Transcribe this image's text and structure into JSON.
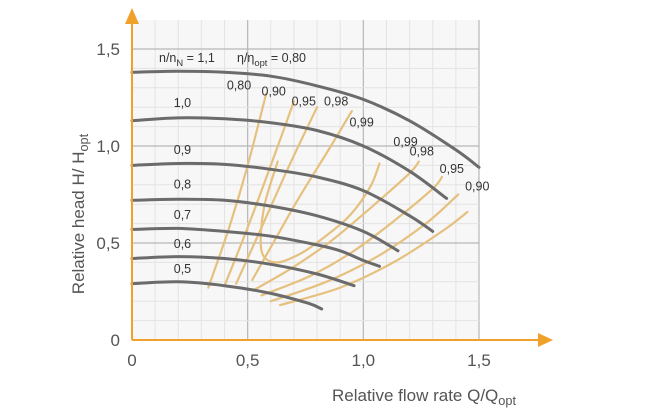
{
  "chart_data": {
    "type": "line",
    "xlabel": "Relative flow rate Q/Q",
    "xlabel_sub": "opt",
    "ylabel": "Relative head H/ H",
    "ylabel_sub": "opt",
    "xlim": [
      0,
      1.55
    ],
    "ylim": [
      0,
      1.55
    ],
    "x_ticks": [
      {
        "value": 0,
        "label": "0"
      },
      {
        "value": 0.5,
        "label": "0,5"
      },
      {
        "value": 1.0,
        "label": "1,0"
      },
      {
        "value": 1.5,
        "label": "1,5"
      }
    ],
    "y_ticks": [
      {
        "value": 0,
        "label": "0"
      },
      {
        "value": 0.5,
        "label": "0,5"
      },
      {
        "value": 1.0,
        "label": "1,0"
      },
      {
        "value": 1.5,
        "label": "1,5"
      }
    ],
    "grid": true,
    "speed_header": {
      "text": "n/n",
      "sub": "N",
      "suffix": " = 1,1"
    },
    "efficiency_header": {
      "text": "η/η",
      "sub": "opt",
      "suffix": " = 0,80"
    },
    "head_curves": [
      {
        "name": "1,1",
        "x": [
          0,
          0.2,
          0.4,
          0.6,
          0.8,
          1.0,
          1.2,
          1.4,
          1.5
        ],
        "y": [
          1.38,
          1.385,
          1.38,
          1.36,
          1.31,
          1.24,
          1.13,
          0.98,
          0.89
        ]
      },
      {
        "name": "1,0",
        "x": [
          0,
          0.2,
          0.4,
          0.6,
          0.8,
          1.0,
          1.2,
          1.36
        ],
        "y": [
          1.13,
          1.145,
          1.14,
          1.12,
          1.08,
          1.0,
          0.87,
          0.73
        ]
      },
      {
        "name": "0,9",
        "x": [
          0,
          0.2,
          0.4,
          0.6,
          0.8,
          1.0,
          1.2,
          1.3
        ],
        "y": [
          0.9,
          0.91,
          0.905,
          0.88,
          0.84,
          0.77,
          0.64,
          0.56
        ]
      },
      {
        "name": "0,8",
        "x": [
          0,
          0.2,
          0.4,
          0.6,
          0.8,
          1.0,
          1.15
        ],
        "y": [
          0.72,
          0.725,
          0.72,
          0.69,
          0.64,
          0.56,
          0.46
        ]
      },
      {
        "name": "0,7",
        "x": [
          0,
          0.2,
          0.4,
          0.6,
          0.8,
          0.9,
          1.0,
          1.07
        ],
        "y": [
          0.57,
          0.575,
          0.56,
          0.535,
          0.49,
          0.46,
          0.41,
          0.38
        ]
      },
      {
        "name": "0,6",
        "x": [
          0,
          0.2,
          0.4,
          0.6,
          0.8,
          0.96
        ],
        "y": [
          0.42,
          0.43,
          0.42,
          0.39,
          0.34,
          0.28
        ]
      },
      {
        "name": "0,5",
        "x": [
          0,
          0.2,
          0.4,
          0.6,
          0.76,
          0.82
        ],
        "y": [
          0.29,
          0.3,
          0.28,
          0.24,
          0.19,
          0.16
        ]
      }
    ],
    "head_curve_labels": [
      {
        "name": "1,0",
        "text": "1,0",
        "x": 0.12,
        "y": 1.2
      },
      {
        "name": "0,9",
        "text": "0,9",
        "x": 0.12,
        "y": 0.96
      },
      {
        "name": "0,8",
        "text": "0,8",
        "x": 0.12,
        "y": 0.78
      },
      {
        "name": "0,7",
        "text": "0,7",
        "x": 0.12,
        "y": 0.625
      },
      {
        "name": "0,6",
        "text": "0,6",
        "x": 0.12,
        "y": 0.475
      },
      {
        "name": "0,5",
        "text": "0,5",
        "x": 0.12,
        "y": 0.345
      }
    ],
    "efficiency_curves": [
      {
        "name": "0,80",
        "x": [
          0.33,
          0.42,
          0.5,
          0.58
        ],
        "y": [
          0.27,
          0.58,
          0.9,
          1.27
        ]
      },
      {
        "name": "0,90",
        "x": [
          0.4,
          0.5,
          0.6,
          0.7
        ],
        "y": [
          0.28,
          0.58,
          0.9,
          1.23
        ]
      },
      {
        "name": "0,95",
        "x": [
          0.45,
          0.56,
          0.68,
          0.8
        ],
        "y": [
          0.29,
          0.58,
          0.9,
          1.2
        ]
      },
      {
        "name": "0,98",
        "x": [
          0.52,
          0.62,
          0.72,
          0.86,
          0.95
        ],
        "y": [
          0.31,
          0.52,
          0.73,
          1.0,
          1.18
        ]
      },
      {
        "name": "0,99 (inner)",
        "x": [
          0.63,
          0.57,
          0.56,
          0.62,
          0.72,
          0.82,
          0.94,
          1.03,
          1.07
        ],
        "y": [
          0.92,
          0.68,
          0.46,
          0.4,
          0.44,
          0.52,
          0.64,
          0.79,
          0.91
        ]
      },
      {
        "name": "0,99 (outer)",
        "x": [
          0.53,
          0.69,
          0.86,
          1.05,
          1.2,
          1.24
        ],
        "y": [
          0.26,
          0.37,
          0.51,
          0.7,
          0.86,
          0.92
        ]
      },
      {
        "name": "0,98 (lower)",
        "x": [
          0.56,
          0.77,
          0.96,
          1.15,
          1.3,
          1.34
        ],
        "y": [
          0.23,
          0.33,
          0.46,
          0.63,
          0.78,
          0.84
        ]
      },
      {
        "name": "0,95 (lower)",
        "x": [
          0.6,
          0.84,
          1.06,
          1.27,
          1.41
        ],
        "y": [
          0.2,
          0.3,
          0.43,
          0.6,
          0.75
        ]
      },
      {
        "name": "0,90 (lower)",
        "x": [
          0.64,
          0.9,
          1.13,
          1.34,
          1.45
        ],
        "y": [
          0.18,
          0.27,
          0.4,
          0.56,
          0.66
        ]
      }
    ],
    "efficiency_labels": [
      {
        "text": "0,80",
        "x": 0.41,
        "y": 1.29
      },
      {
        "text": "0,90",
        "x": 0.56,
        "y": 1.26
      },
      {
        "text": "0,95",
        "x": 0.69,
        "y": 1.21
      },
      {
        "text": "0,98",
        "x": 0.83,
        "y": 1.21
      },
      {
        "text": "0,99",
        "x": 0.94,
        "y": 1.1
      },
      {
        "text": "0,99",
        "x": 1.13,
        "y": 1.0
      },
      {
        "text": "0,98",
        "x": 1.2,
        "y": 0.95
      },
      {
        "text": "0,95",
        "x": 1.33,
        "y": 0.86
      },
      {
        "text": "0,90",
        "x": 1.44,
        "y": 0.77
      }
    ],
    "colors": {
      "axis": "#f0a12a",
      "head_curve": "#6b6b6b",
      "efficiency_curve": "#e6c07e",
      "grid_minor": "#e4e4e4",
      "grid_major": "#b7b7b7",
      "plot_background": "#f7f7f7"
    }
  }
}
